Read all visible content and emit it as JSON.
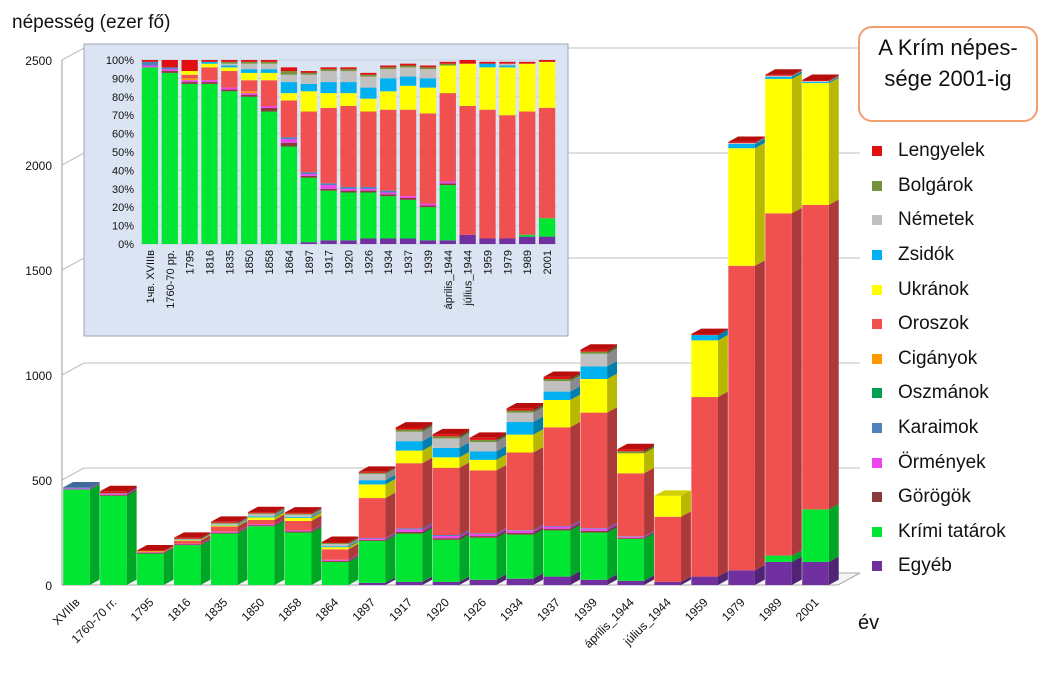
{
  "ylabel": "népesség (ezer fő)",
  "xunit": "év",
  "title": "A Krím népes-\nsége 2001-ig",
  "legend_order": [
    "Lengyelek",
    "Bolgárok",
    "Németek",
    "Zsidók",
    "Ukránok",
    "Oroszok",
    "Cigányok",
    "Oszmánok",
    "Karaimok",
    "Örmények",
    "Görögök",
    "Krími tatárok",
    "Egyéb"
  ],
  "colors": {
    "Egyéb": "#7030a0",
    "Krími tatárok": "#00e633",
    "Görögök": "#8b3a3a",
    "Örmények": "#ee44ee",
    "Karaimok": "#4f81bd",
    "Oszmánok": "#00a050",
    "Cigányok": "#ff9900",
    "Oroszok": "#f05050",
    "Ukránok": "#ffff00",
    "Zsidók": "#00b0f0",
    "Németek": "#c0c0c0",
    "Bolgárok": "#76923c",
    "Lengyelek": "#e01010"
  },
  "chart_data": [
    {
      "type": "bar",
      "stacked": true,
      "three_d": true,
      "ylabel": "népesség (ezer fő)",
      "xlabel": "év",
      "ylim": [
        0,
        2500
      ],
      "yticks": [
        0,
        500,
        1000,
        1500,
        2000,
        2500
      ],
      "categories": [
        "XVIIIв",
        "1760-70 гг.",
        "1795",
        "1816",
        "1835",
        "1850",
        "1858",
        "1864",
        "1897",
        "1917",
        "1920",
        "1926",
        "1934",
        "1937",
        "1939",
        "április_1944",
        "július_1944",
        "1959",
        "1979",
        "1989",
        "2001"
      ],
      "series": [
        {
          "name": "Egyéb",
          "values": [
            0,
            0,
            0,
            0,
            0,
            0,
            0,
            0,
            10,
            15,
            15,
            25,
            30,
            40,
            25,
            20,
            15,
            40,
            70,
            110,
            110
          ]
        },
        {
          "name": "Krími tatárok",
          "values": [
            455,
            425,
            150,
            190,
            245,
            280,
            250,
            110,
            200,
            230,
            200,
            200,
            210,
            220,
            225,
            200,
            0,
            0,
            0,
            30,
            250
          ]
        },
        {
          "name": "Görögök",
          "values": [
            0,
            5,
            3,
            3,
            4,
            5,
            5,
            5,
            5,
            8,
            8,
            8,
            8,
            8,
            8,
            5,
            0,
            0,
            0,
            0,
            0
          ]
        },
        {
          "name": "Örmények",
          "values": [
            5,
            5,
            2,
            3,
            5,
            5,
            5,
            5,
            6,
            12,
            10,
            10,
            10,
            10,
            10,
            5,
            0,
            0,
            0,
            0,
            0
          ]
        },
        {
          "name": "Karaimok",
          "values": [
            5,
            2,
            0,
            0,
            0,
            0,
            0,
            0,
            3,
            5,
            5,
            3,
            3,
            3,
            3,
            2,
            0,
            0,
            0,
            0,
            0
          ]
        },
        {
          "name": "Oszmánok",
          "values": [
            0,
            0,
            0,
            0,
            0,
            0,
            0,
            0,
            0,
            0,
            0,
            0,
            0,
            0,
            0,
            0,
            0,
            0,
            0,
            0,
            0
          ]
        },
        {
          "name": "Cigányok",
          "values": [
            0,
            0,
            0,
            0,
            0,
            0,
            0,
            0,
            0,
            0,
            0,
            0,
            0,
            0,
            0,
            0,
            0,
            0,
            0,
            0,
            0
          ]
        },
        {
          "name": "Oroszok",
          "values": [
            0,
            0,
            3,
            15,
            25,
            20,
            45,
            50,
            190,
            310,
            320,
            300,
            370,
            470,
            550,
            300,
            310,
            855,
            1450,
            1630,
            1450
          ]
        },
        {
          "name": "Ukránok",
          "values": [
            0,
            0,
            2,
            3,
            5,
            12,
            15,
            10,
            65,
            60,
            50,
            50,
            85,
            130,
            160,
            95,
            100,
            270,
            560,
            640,
            580
          ]
        },
        {
          "name": "Zsidók",
          "values": [
            0,
            0,
            0,
            2,
            3,
            5,
            5,
            5,
            20,
            45,
            45,
            40,
            60,
            40,
            60,
            0,
            0,
            25,
            20,
            10,
            5
          ]
        },
        {
          "name": "Németek",
          "values": [
            0,
            0,
            0,
            2,
            5,
            10,
            10,
            10,
            30,
            45,
            45,
            45,
            45,
            50,
            60,
            0,
            0,
            0,
            5,
            5,
            5
          ]
        },
        {
          "name": "Bolgárok",
          "values": [
            0,
            0,
            0,
            2,
            4,
            5,
            5,
            5,
            5,
            10,
            10,
            10,
            10,
            10,
            10,
            10,
            0,
            0,
            0,
            0,
            0
          ]
        },
        {
          "name": "Lengyelek",
          "values": [
            0,
            10,
            5,
            5,
            5,
            5,
            5,
            5,
            5,
            10,
            10,
            10,
            10,
            10,
            10,
            10,
            0,
            5,
            5,
            5,
            5
          ]
        }
      ]
    },
    {
      "type": "bar",
      "stacked": true,
      "percent": true,
      "ylim": [
        0,
        100
      ],
      "yticks": [
        "0%",
        "10%",
        "20%",
        "30%",
        "40%",
        "50%",
        "60%",
        "70%",
        "80%",
        "90%",
        "100%"
      ],
      "categories": [
        "1чв. XVIIIв",
        "1760-70 рр.",
        "1795",
        "1816",
        "1835",
        "1850",
        "1858",
        "1864",
        "1897",
        "1917",
        "1920",
        "1926",
        "1934",
        "1937",
        "1939",
        "április_1944",
        "július_1944",
        "1959",
        "1979",
        "1989",
        "2001"
      ],
      "series": [
        {
          "name": "Egyéb",
          "values": [
            0,
            0,
            0,
            0,
            0,
            0,
            0,
            0,
            1,
            2,
            2,
            3,
            3,
            3,
            2,
            2,
            5,
            3,
            3,
            4,
            4
          ]
        },
        {
          "name": "Krími tatárok",
          "values": [
            96,
            93,
            87,
            87,
            83,
            80,
            72,
            53,
            35,
            27,
            26,
            25,
            23,
            21,
            18,
            30,
            0,
            0,
            0,
            1,
            10
          ]
        },
        {
          "name": "Görögök",
          "values": [
            0,
            1,
            1,
            1,
            1,
            1,
            2,
            2,
            1,
            1,
            1,
            1,
            1,
            1,
            1,
            1,
            0,
            0,
            0,
            0,
            0
          ]
        },
        {
          "name": "Örmények",
          "values": [
            1,
            1,
            1,
            1,
            1,
            1,
            1,
            2,
            1,
            2,
            1,
            1,
            1,
            1,
            1,
            1,
            0,
            0,
            0,
            0,
            0
          ]
        },
        {
          "name": "Karaimok",
          "values": [
            2,
            1,
            0,
            0,
            0,
            0,
            0,
            1,
            1,
            1,
            1,
            1,
            1,
            0,
            0,
            0,
            0,
            0,
            0,
            0,
            0
          ]
        },
        {
          "name": "Oszmánok",
          "values": [
            0,
            0,
            0,
            0,
            0,
            0,
            0,
            0,
            0,
            0,
            0,
            0,
            0,
            0,
            0,
            0,
            0,
            0,
            0,
            0,
            0
          ]
        },
        {
          "name": "Cigányok",
          "values": [
            0,
            0,
            1,
            0,
            0,
            1,
            0,
            0,
            0,
            0,
            0,
            0,
            0,
            0,
            0,
            0,
            0,
            0,
            0,
            0,
            0
          ]
        },
        {
          "name": "Oroszok",
          "values": [
            0,
            0,
            2,
            7,
            9,
            6,
            14,
            20,
            33,
            41,
            44,
            41,
            44,
            47,
            49,
            48,
            70,
            70,
            67,
            67,
            60
          ]
        },
        {
          "name": "Ukránok",
          "values": [
            0,
            0,
            2,
            2,
            2,
            4,
            4,
            4,
            11,
            8,
            7,
            7,
            10,
            13,
            14,
            15,
            23,
            23,
            26,
            26,
            25
          ]
        },
        {
          "name": "Zsidók",
          "values": [
            0,
            0,
            0,
            1,
            1,
            2,
            2,
            6,
            4,
            6,
            6,
            6,
            7,
            5,
            5,
            0,
            0,
            2,
            1,
            0,
            0
          ]
        },
        {
          "name": "Németek",
          "values": [
            0,
            0,
            0,
            0,
            1,
            3,
            3,
            4,
            5,
            6,
            6,
            6,
            5,
            5,
            5,
            0,
            0,
            0,
            1,
            0,
            0
          ]
        },
        {
          "name": "Bolgárok",
          "values": [
            0,
            0,
            0,
            0,
            1,
            1,
            1,
            2,
            1,
            1,
            1,
            1,
            1,
            1,
            1,
            1,
            0,
            0,
            0,
            0,
            0
          ]
        },
        {
          "name": "Lengyelek",
          "values": [
            1,
            4,
            6,
            1,
            1,
            1,
            1,
            2,
            1,
            1,
            1,
            1,
            1,
            1,
            1,
            1,
            2,
            1,
            1,
            1,
            1
          ]
        }
      ]
    }
  ]
}
